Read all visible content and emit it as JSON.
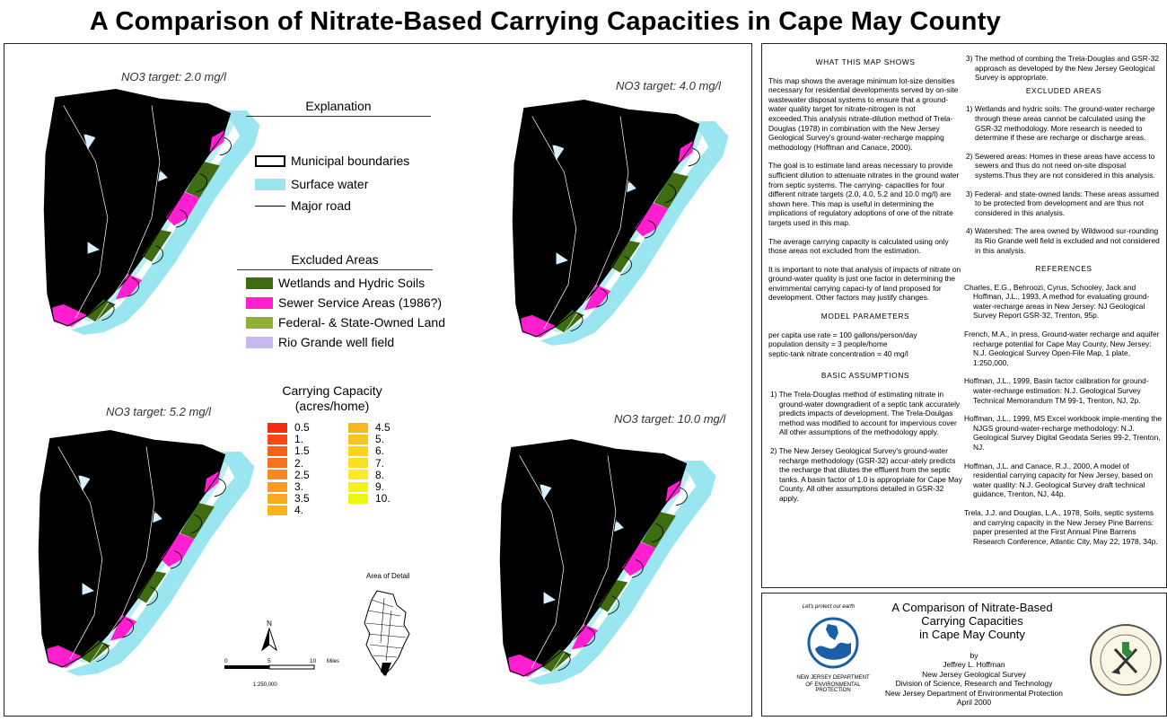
{
  "title": "A Comparison of Nitrate-Based Carrying Capacities in Cape May County",
  "maps": {
    "m1_label": "NO3 target: 2.0 mg/l",
    "m2_label": "NO3 target:  4.0 mg/l",
    "m3_label": "NO3 target: 5.2 mg/l",
    "m4_label": "NO3 target: 10.0 mg/l"
  },
  "explanation": {
    "title": "Explanation",
    "municipal": "Municipal boundaries",
    "surface_water": "Surface water",
    "major_road": "Major road"
  },
  "excluded": {
    "title": "Excluded Areas",
    "wetlands": "Wetlands and Hydric Soils",
    "sewer": "Sewer Service Areas (1986?)",
    "federal": "Federal- & State-Owned Land",
    "rio": "Rio Grande well field"
  },
  "carrying": {
    "title1": "Carrying Capacity",
    "title2": "(acres/home)",
    "left": [
      "0.5",
      "1.",
      "1.5",
      "2.",
      "2.5",
      "3.",
      "3.5",
      "4."
    ],
    "right": [
      "4.5",
      "5.",
      "6.",
      "7.",
      "8.",
      "9.",
      "10."
    ]
  },
  "colors": {
    "wetlands": "#3f6b12",
    "sewer": "#ff1fd0",
    "federal": "#8fb034",
    "rio": "#c8b8f0",
    "water": "#9ae6f0",
    "cc_left": [
      "#f62c10",
      "#f54a14",
      "#f5601a",
      "#f57220",
      "#f68a22",
      "#f79c24",
      "#f8aa20",
      "#f9b41c"
    ],
    "cc_right": [
      "#f7b81a",
      "#f9c41c",
      "#fad41e",
      "#fbe020",
      "#fdea22",
      "#f6f01c",
      "#eff50e"
    ]
  },
  "scale": {
    "north": "N",
    "t0": "0",
    "t5": "5",
    "t10": "10",
    "units": "Miles",
    "ratio": "1:250,000"
  },
  "inset_label": "Area of Detail",
  "text": {
    "what_title": "WHAT THIS MAP SHOWS",
    "p1": "This map shows the average minimum lot-size densities necessary for residential developments served by on-site wastewater disposal systems to ensure that a ground-water quality target for nitrate-nitrogen is not exceeded.This analysis nitrate-dilution method of Trela- Douglas (1978) in combination with the New Jersey Geological Survey's ground-water-recharge mapping methodology (Hoffman and Canace, 2000).",
    "p2": "The goal is to estimate land areas necessary to provide sufficient dilution to attenuate nitrates in the ground water from septic systems. The carrying- capacities for four different nitrate targets (2.0, 4.0, 5.2 and 10.0 mg/l) are shown here. This map is useful in determining the implications of regulatory adoptions of one of the nitrate targets used in this map.",
    "p3": "The average carrying capacity is calculated using only those areas not excluded from the estimation.",
    "p4": "It is important to note that analysis of impacts of nitrate on ground-water quality is just one factor in determining the envirnmental carrying capaci-ty of land proposed for development. Other factors may justify changes.",
    "model_title": "MODEL PARAMETERS",
    "model1": "per capita use rate = 100 gallons/person/day",
    "model2": "population density = 3 people/home",
    "model3": "septic-tank nitrate concentration = 40 mg/l",
    "basic_title": "BASIC ASSUMPTIONS",
    "basic1": "1) The Trela-Douglas method of estimating nitrate in ground-water downgradient of a septic tank accurately predicts impacts of development. The Trela-Doulgas method was modified to account for impervious cover All other assumptions of the methodology apply.",
    "basic2": "2) The New Jersey Geological Survey's ground-water recharge methodology (GSR-32) accur-ately predicts the recharge that dilutes the effluent from the septic tanks. A basin factor of 1.0 is appropriate for Cape May County. All other assumptions detailed in GSR-32 apply.",
    "basic3": "3) The method of combing the Trela-Douglas and GSR-32 approach as developed by the New Jersey Geological Survey is appropriate.",
    "excl_title": "EXCLUDED AREAS",
    "ex1": "1) Wetlands and hydric soils: The ground-water recharge through these areas cannot be calculated using the GSR-32 methodology. More research is needed to determine if these are recharge or discharge areas.",
    "ex2": "2) Sewered areas: Homes in these areas have access to sewers and thus do not need on-site disposal systems.Thus they are not considered in this analysis.",
    "ex3": "3) Federal- and state-owned lands: These areas assumed to be protected from development and are thus not considered in this analysis.",
    "ex4": "4) Watershed: The area owned by Wildwood sur-rounding its Rio Grande well field is excluded and not considered in this analysis.",
    "ref_title": "REFERENCES",
    "r1": "Charles, E.G., Behroozi, Cyrus, Schooley, Jack and Hoffman, J.L., 1993, A method for evaluating ground-water-recharge areas in New Jersey: NJ Geological Survey Report GSR-32, Trenton, 95p.",
    "r2": "French, M.A., in press, Ground-water recharge and aquifer recharge potential for Cape May County, New Jersey: N.J. Geological Survey Open-File Map, 1 plate, 1:250,000.",
    "r3": "Hoffman, J.L., 1999, Basin factor calibration for ground-water-recharge estimation: N.J. Geological Survey Technical Memorandum TM 99-1, Trenton, NJ, 2p.",
    "r4": "Hoffman, J.L., 1999, MS Excel workbook imple-menting the NJGS ground-water-recharge methodology: N.J. Geological Survey Digital Geodata Series 99-2, Trenton, NJ.",
    "r5": "Hoffman, J.L. and Canace, R.J., 2000, A model of residential carrying capacity for New Jersey, based on water quality: N.J. Geological Survey draft technical guidance, Trenton, NJ, 44p.",
    "r6": "Trela, J.J. and Douglas, L.A., 1978, Soils, septic systems and carrying capacity in the New Jersey Pine Barrens: paper presented at the First Annual Pine Barrens Research Conference, Atlantic City, May 22, 1978, 34p."
  },
  "titleblock": {
    "l1": "A Comparison of Nitrate-Based",
    "l2": "Carrying Capacities",
    "l3": "in Cape May County",
    "by": "by",
    "author": "Jeffrey L. Hoffman",
    "org1": "New Jersey Geological Survey",
    "org2": "Division of Science, Research and Technology",
    "org3": "New Jersey Department of Environmental Protection",
    "date": "April 2000",
    "dep_top": "Let's protect our earth",
    "dep_bottom1": "NEW JERSEY DEPARTMENT",
    "dep_bottom2": "OF ENVIRONMENTAL PROTECTION"
  }
}
